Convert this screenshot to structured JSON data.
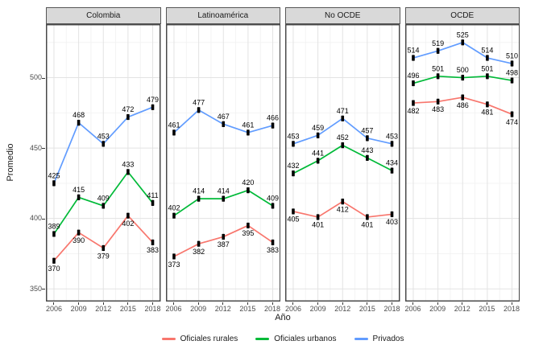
{
  "figure": {
    "x_axis_title": "Año",
    "y_axis_title": "Promedio"
  },
  "chart_data": {
    "type": "line",
    "title": "",
    "facets": [
      "Colombia",
      "Latinoamérica",
      "No OCDE",
      "OCDE"
    ],
    "x": [
      2006,
      2009,
      2012,
      2015,
      2018
    ],
    "xlabel": "Año",
    "ylabel": "Promedio",
    "ylim": [
      341,
      538
    ],
    "y_ticks": [
      350,
      400,
      450,
      500
    ],
    "y_minor_ticks": [
      375,
      425,
      475,
      525
    ],
    "grid": true,
    "legend_position": "bottom",
    "marker_color": "#000000",
    "strip_background": "#d9d9d9",
    "series": [
      {
        "name": "Oficiales rurales",
        "color": "#F8766D",
        "label_placement": "below",
        "values_by_facet": [
          [
            370,
            390,
            379,
            402,
            383
          ],
          [
            373,
            382,
            387,
            395,
            383
          ],
          [
            405,
            401,
            412,
            401,
            403
          ],
          [
            482,
            483,
            486,
            481,
            474
          ]
        ]
      },
      {
        "name": "Oficiales urbanos",
        "color": "#00BA38",
        "label_placement": "above",
        "values_by_facet": [
          [
            389,
            415,
            409,
            433,
            411
          ],
          [
            402,
            414,
            414,
            420,
            409
          ],
          [
            432,
            441,
            452,
            443,
            434
          ],
          [
            496,
            501,
            500,
            501,
            498
          ]
        ]
      },
      {
        "name": "Privados",
        "color": "#619CFF",
        "label_placement": "above",
        "values_by_facet": [
          [
            425,
            468,
            453,
            472,
            479
          ],
          [
            461,
            477,
            467,
            461,
            466
          ],
          [
            453,
            459,
            471,
            457,
            453
          ],
          [
            514,
            519,
            525,
            514,
            510
          ]
        ]
      }
    ]
  }
}
